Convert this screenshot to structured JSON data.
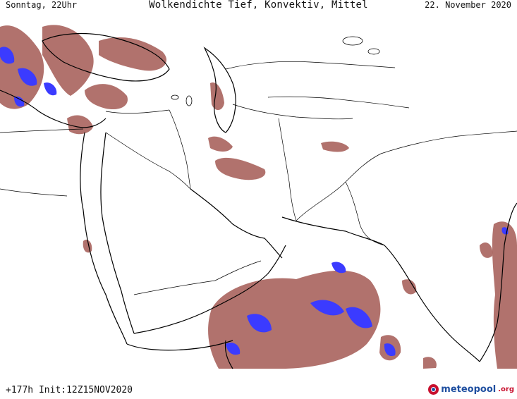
{
  "header": {
    "left": "Sonntag, 22Uhr",
    "title": "Wolkendichte   Tief, Konvektiv, Mittel",
    "right": "22. November 2020"
  },
  "footer": {
    "run_info": "+177h  Init:12Z15NOV2020",
    "brand_name": "meteopool",
    "brand_tld": ".org"
  },
  "legend_colors": {
    "cloud_density": "#9b4a44",
    "convective": "#3b3bff",
    "coastline": "#000000",
    "border": "#000000"
  }
}
